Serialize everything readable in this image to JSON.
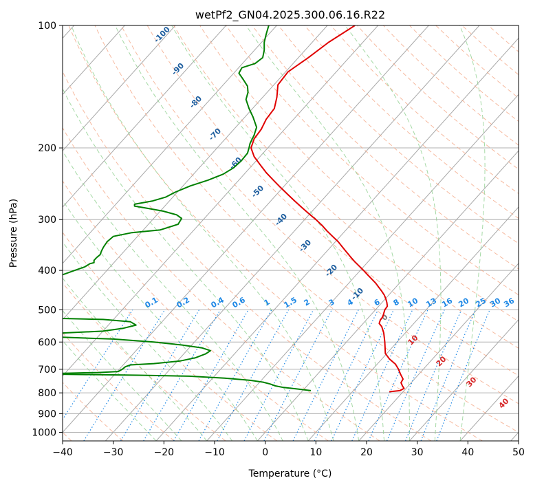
{
  "chart_data": {
    "type": "line",
    "title": "wetPf2_GN04.2025.300.06.16.R22",
    "xlabel": "Temperature (°C)",
    "ylabel": "Pressure (hPa)",
    "xlim": [
      -40,
      50
    ],
    "ylim": [
      1050,
      100
    ],
    "y_scale": "log",
    "x_ticks": [
      "−40",
      "−30",
      "−20",
      "−10",
      "0",
      "10",
      "20",
      "30",
      "40",
      "50"
    ],
    "y_ticks": [
      100,
      200,
      300,
      400,
      500,
      600,
      700,
      800,
      900,
      1000
    ],
    "grid": true,
    "colors": {
      "temperature": "#e00000",
      "dewpoint": "#008000",
      "isotherm": "#a8a8a8",
      "dry_adiabat": "#f4a988",
      "moist_adiabat": "#8fcf8f",
      "mixing_ratio": "#1e88e5",
      "isotherm_label": "#1f5f9f",
      "mixing_ratio_label": "#1e88e5",
      "freezing_label": "#808080",
      "warm_isotherm_label": "#d62728"
    },
    "series": [
      {
        "key": "temperature",
        "points": [
          [
            17.7,
            100
          ],
          [
            12.5,
            110
          ],
          [
            8.5,
            120
          ],
          [
            4.5,
            130
          ],
          [
            2.5,
            140
          ],
          [
            2.3,
            150
          ],
          [
            1.8,
            160
          ],
          [
            0.2,
            170
          ],
          [
            -0.8,
            180
          ],
          [
            -2.2,
            190
          ],
          [
            -2.8,
            200
          ],
          [
            -2.2,
            210
          ],
          [
            -1.0,
            220
          ],
          [
            0.2,
            230
          ],
          [
            1.6,
            240
          ],
          [
            3.0,
            250
          ],
          [
            4.4,
            260
          ],
          [
            5.8,
            270
          ],
          [
            7.2,
            280
          ],
          [
            8.6,
            290
          ],
          [
            10.0,
            300
          ],
          [
            11.2,
            310
          ],
          [
            12.2,
            320
          ],
          [
            13.3,
            330
          ],
          [
            14.4,
            340
          ],
          [
            15.2,
            350
          ],
          [
            16.0,
            360
          ],
          [
            16.8,
            370
          ],
          [
            17.6,
            380
          ],
          [
            18.5,
            390
          ],
          [
            19.4,
            400
          ],
          [
            20.2,
            410
          ],
          [
            21.0,
            420
          ],
          [
            21.8,
            430
          ],
          [
            22.4,
            440
          ],
          [
            23.0,
            450
          ],
          [
            23.5,
            460
          ],
          [
            23.8,
            470
          ],
          [
            24.0,
            480
          ],
          [
            24.1,
            490
          ],
          [
            23.6,
            500
          ],
          [
            23.4,
            510
          ],
          [
            23.2,
            520
          ],
          [
            22.7,
            530
          ],
          [
            22.5,
            540
          ],
          [
            23.0,
            550
          ],
          [
            23.4,
            570
          ],
          [
            23.6,
            600
          ],
          [
            23.7,
            640
          ],
          [
            24.5,
            660
          ],
          [
            25.7,
            680
          ],
          [
            26.3,
            700
          ],
          [
            26.7,
            720
          ],
          [
            27.2,
            740
          ],
          [
            26.8,
            755
          ],
          [
            27.1,
            770
          ],
          [
            27.4,
            780
          ],
          [
            26.6,
            790
          ],
          [
            24.5,
            795
          ]
        ]
      },
      {
        "key": "dewpoint",
        "points": [
          [
            0.7,
            100
          ],
          [
            0.2,
            105
          ],
          [
            -0.2,
            110
          ],
          [
            -0.2,
            115
          ],
          [
            -0.5,
            120
          ],
          [
            -2.0,
            124
          ],
          [
            -4.6,
            127
          ],
          [
            -5.2,
            131
          ],
          [
            -4.3,
            136
          ],
          [
            -3.5,
            141
          ],
          [
            -3.4,
            146
          ],
          [
            -3.8,
            152
          ],
          [
            -3.2,
            160
          ],
          [
            -2.4,
            168
          ],
          [
            -1.7,
            178
          ],
          [
            -2.2,
            186
          ],
          [
            -3.0,
            195
          ],
          [
            -3.2,
            200
          ],
          [
            -3.5,
            206
          ],
          [
            -4.7,
            215
          ],
          [
            -6.3,
            224
          ],
          [
            -8.3,
            232
          ],
          [
            -11.3,
            240
          ],
          [
            -14.8,
            248
          ],
          [
            -17.8,
            257
          ],
          [
            -19.6,
            264
          ],
          [
            -22.2,
            270
          ],
          [
            -25.8,
            275
          ],
          [
            -25.8,
            278
          ],
          [
            -23.6,
            281
          ],
          [
            -20.2,
            286
          ],
          [
            -17.5,
            292
          ],
          [
            -16.5,
            298
          ],
          [
            -17.2,
            308
          ],
          [
            -20.7,
            318
          ],
          [
            -26.3,
            323
          ],
          [
            -30.0,
            330
          ],
          [
            -31.2,
            340
          ],
          [
            -31.9,
            350
          ],
          [
            -32.3,
            358
          ],
          [
            -32.6,
            366
          ],
          [
            -33.3,
            372
          ],
          [
            -33.8,
            378
          ],
          [
            -33.8,
            383
          ],
          [
            -34.6,
            385
          ],
          [
            -35.6,
            392
          ],
          [
            -37.6,
            400
          ],
          [
            -40.0,
            410
          ]
        ]
      },
      {
        "key": "dewpoint_lower",
        "points": [
          [
            -40,
            525
          ],
          [
            -32,
            528
          ],
          [
            -26.6,
            535
          ],
          [
            -25.5,
            545
          ],
          [
            -28.0,
            555
          ],
          [
            -32,
            564
          ],
          [
            -40,
            570
          ]
        ]
      },
      {
        "key": "dewpoint_lowest",
        "points": [
          [
            -40,
            584
          ],
          [
            -30,
            590
          ],
          [
            -22,
            600
          ],
          [
            -16.5,
            610
          ],
          [
            -12.5,
            620
          ],
          [
            -10.8,
            630
          ],
          [
            -11.8,
            642
          ],
          [
            -13.8,
            656
          ],
          [
            -16.8,
            668
          ],
          [
            -22,
            678
          ],
          [
            -26.6,
            683
          ],
          [
            -27.6,
            690
          ],
          [
            -28.2,
            700
          ],
          [
            -29.0,
            709
          ],
          [
            -33,
            713
          ],
          [
            -40,
            716
          ]
        ]
      },
      {
        "key": "dewpoint_surface",
        "points": [
          [
            -40,
            720
          ],
          [
            -25,
            724
          ],
          [
            -15,
            728
          ],
          [
            -8,
            736
          ],
          [
            -3,
            745
          ],
          [
            -0.4,
            753
          ],
          [
            1.0,
            761
          ],
          [
            2.0,
            769
          ],
          [
            3.6,
            776
          ],
          [
            6.5,
            783
          ],
          [
            9.0,
            790
          ]
        ]
      }
    ],
    "isotherm_labels": [
      "-100",
      "-90",
      "-80",
      "-70",
      "-60",
      "-50",
      "-40",
      "-30",
      "-20",
      "-10",
      "0",
      "10",
      "20",
      "30",
      "40"
    ],
    "mixing_ratio_labels": [
      "0.1",
      "0.2",
      "0.4",
      "0.6",
      "1",
      "1.5",
      "2",
      "3",
      "4",
      "6",
      "8",
      "10",
      "13",
      "16",
      "20",
      "25",
      "30",
      "36"
    ]
  }
}
